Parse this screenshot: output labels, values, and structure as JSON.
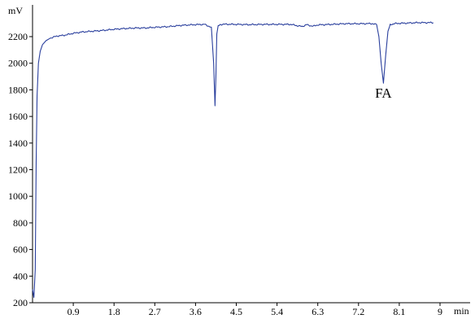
{
  "chart_data": {
    "type": "line",
    "title": "",
    "xlabel": "min",
    "ylabel": "mV",
    "xlim": [
      0,
      9.6
    ],
    "ylim": [
      200,
      2400
    ],
    "x_ticks": [
      "0.9",
      "1.8",
      "2.7",
      "3.6",
      "4.5",
      "5.4",
      "6.3",
      "7.2",
      "8.1",
      "9"
    ],
    "y_ticks": [
      "200",
      "400",
      "600",
      "800",
      "1000",
      "1200",
      "1400",
      "1600",
      "1800",
      "2000",
      "2200"
    ],
    "grid": false,
    "legend": "none",
    "color": "#2a3f9d",
    "annotations": [
      {
        "text": "FA",
        "x": 7.75,
        "y": 1790
      }
    ],
    "series": [
      {
        "x": [
          0.0,
          0.03,
          0.06,
          0.08,
          0.1,
          0.13,
          0.17,
          0.22,
          0.3,
          0.4,
          0.55,
          0.7,
          0.9,
          1.1,
          1.3,
          1.5,
          1.8,
          2.0,
          2.3,
          2.5,
          2.7,
          3.0,
          3.3,
          3.6,
          3.8,
          3.95,
          4.0,
          4.03,
          4.05,
          4.07,
          4.1,
          4.15,
          4.2,
          4.3,
          4.5,
          4.8,
          5.1,
          5.4,
          5.7,
          5.85,
          5.95,
          6.0,
          6.05,
          6.1,
          6.2,
          6.3,
          6.6,
          6.9,
          7.2,
          7.5,
          7.6,
          7.65,
          7.7,
          7.75,
          7.8,
          7.85,
          7.9,
          8.0,
          8.1,
          8.3,
          8.5,
          8.7,
          8.85
        ],
        "y": [
          300,
          240,
          450,
          1250,
          1750,
          2000,
          2090,
          2140,
          2170,
          2190,
          2205,
          2210,
          2225,
          2235,
          2240,
          2245,
          2255,
          2260,
          2265,
          2265,
          2270,
          2275,
          2285,
          2290,
          2292,
          2270,
          2000,
          1680,
          1900,
          2220,
          2280,
          2290,
          2293,
          2293,
          2292,
          2290,
          2292,
          2292,
          2292,
          2282,
          2276,
          2282,
          2290,
          2285,
          2278,
          2288,
          2292,
          2297,
          2297,
          2298,
          2290,
          2200,
          2000,
          1850,
          2060,
          2240,
          2290,
          2298,
          2300,
          2302,
          2305,
          2305,
          2305
        ]
      }
    ]
  }
}
